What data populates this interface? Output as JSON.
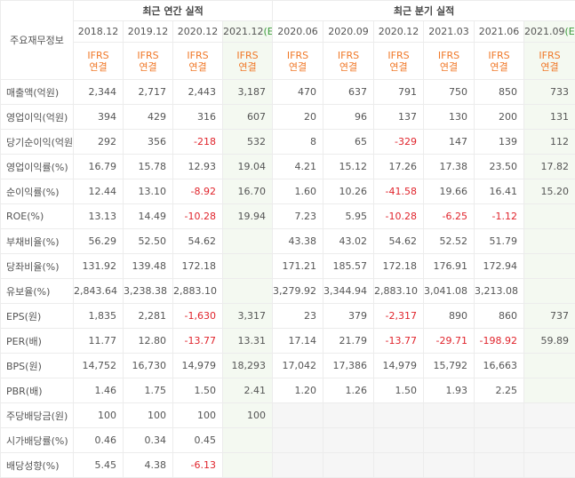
{
  "header": {
    "title": "주요재무정보",
    "annual_heading": "최근 연간 실적",
    "quarterly_heading": "최근 분기 실적"
  },
  "annual_columns": [
    {
      "period": "2018.12",
      "standard": "IFRS",
      "scope": "연결"
    },
    {
      "period": "2019.12",
      "standard": "IFRS",
      "scope": "연결"
    },
    {
      "period": "2020.12",
      "standard": "IFRS",
      "scope": "연결"
    },
    {
      "period": "2021.12",
      "estimate": "(E)",
      "standard": "IFRS",
      "scope": "연결"
    }
  ],
  "quarterly_columns": [
    {
      "period": "2020.06",
      "standard": "IFRS",
      "scope": "연결"
    },
    {
      "period": "2020.09",
      "standard": "IFRS",
      "scope": "연결"
    },
    {
      "period": "2020.12",
      "standard": "IFRS",
      "scope": "연결"
    },
    {
      "period": "2021.03",
      "standard": "IFRS",
      "scope": "연결"
    },
    {
      "period": "2021.06",
      "standard": "IFRS",
      "scope": "연결"
    },
    {
      "period": "2021.09",
      "estimate": "(E)",
      "standard": "IFRS",
      "scope": "연결"
    }
  ],
  "groups": [
    [
      {
        "label": "매출액(억원)",
        "annual": [
          "2,344",
          "2,717",
          "2,443",
          "3,187"
        ],
        "quarterly": [
          "470",
          "637",
          "791",
          "750",
          "850",
          "733"
        ]
      },
      {
        "label": "영업이익(억원)",
        "annual": [
          "394",
          "429",
          "316",
          "607"
        ],
        "quarterly": [
          "20",
          "96",
          "137",
          "130",
          "200",
          "131"
        ]
      },
      {
        "label": "당기순이익(억원)",
        "annual": [
          "292",
          "356",
          "-218",
          "532"
        ],
        "quarterly": [
          "8",
          "65",
          "-329",
          "147",
          "139",
          "112"
        ]
      }
    ],
    [
      {
        "label": "영업이익률(%)",
        "annual": [
          "16.79",
          "15.78",
          "12.93",
          "19.04"
        ],
        "quarterly": [
          "4.21",
          "15.12",
          "17.26",
          "17.38",
          "23.50",
          "17.82"
        ]
      },
      {
        "label": "순이익률(%)",
        "annual": [
          "12.44",
          "13.10",
          "-8.92",
          "16.70"
        ],
        "quarterly": [
          "1.60",
          "10.26",
          "-41.58",
          "19.66",
          "16.41",
          "15.20"
        ]
      },
      {
        "label": "ROE(%)",
        "annual": [
          "13.13",
          "14.49",
          "-10.28",
          "19.94"
        ],
        "quarterly": [
          "7.23",
          "5.95",
          "-10.28",
          "-6.25",
          "-1.12",
          null
        ]
      }
    ],
    [
      {
        "label": "부채비율(%)",
        "annual": [
          "56.29",
          "52.50",
          "54.62",
          null
        ],
        "quarterly": [
          "43.38",
          "43.02",
          "54.62",
          "52.52",
          "51.79",
          null
        ]
      },
      {
        "label": "당좌비율(%)",
        "annual": [
          "131.92",
          "139.48",
          "172.18",
          null
        ],
        "quarterly": [
          "171.21",
          "185.57",
          "172.18",
          "176.91",
          "172.94",
          null
        ]
      },
      {
        "label": "유보율(%)",
        "annual": [
          "2,843.64",
          "3,238.38",
          "2,883.10",
          null
        ],
        "quarterly": [
          "3,279.92",
          "3,344.94",
          "2,883.10",
          "3,041.08",
          "3,213.08",
          null
        ]
      }
    ],
    [
      {
        "label": "EPS(원)",
        "annual": [
          "1,835",
          "2,281",
          "-1,630",
          "3,317"
        ],
        "quarterly": [
          "23",
          "379",
          "-2,317",
          "890",
          "860",
          "737"
        ]
      },
      {
        "label": "PER(배)",
        "annual": [
          "11.77",
          "12.80",
          "-13.77",
          "13.31"
        ],
        "quarterly": [
          "17.14",
          "21.79",
          "-13.77",
          "-29.71",
          "-198.92",
          "59.89"
        ]
      },
      {
        "label": "BPS(원)",
        "annual": [
          "14,752",
          "16,730",
          "14,979",
          "18,293"
        ],
        "quarterly": [
          "17,042",
          "17,386",
          "14,979",
          "15,792",
          "16,663",
          null
        ]
      },
      {
        "label": "PBR(배)",
        "annual": [
          "1.46",
          "1.75",
          "1.50",
          "2.41"
        ],
        "quarterly": [
          "1.20",
          "1.26",
          "1.50",
          "1.93",
          "2.25",
          null
        ]
      }
    ],
    [
      {
        "label": "주당배당금(원)",
        "annual": [
          "100",
          "100",
          "100",
          "100"
        ],
        "quarterly": [
          null,
          null,
          null,
          null,
          null,
          null
        ]
      },
      {
        "label": "시가배당률(%)",
        "annual": [
          "0.46",
          "0.34",
          "0.45",
          null
        ],
        "quarterly": [
          null,
          null,
          null,
          null,
          null,
          null
        ]
      },
      {
        "label": "배당성향(%)",
        "annual": [
          "5.45",
          "4.38",
          "-6.13",
          null
        ],
        "quarterly": [
          null,
          null,
          null,
          null,
          null,
          null
        ]
      }
    ]
  ]
}
